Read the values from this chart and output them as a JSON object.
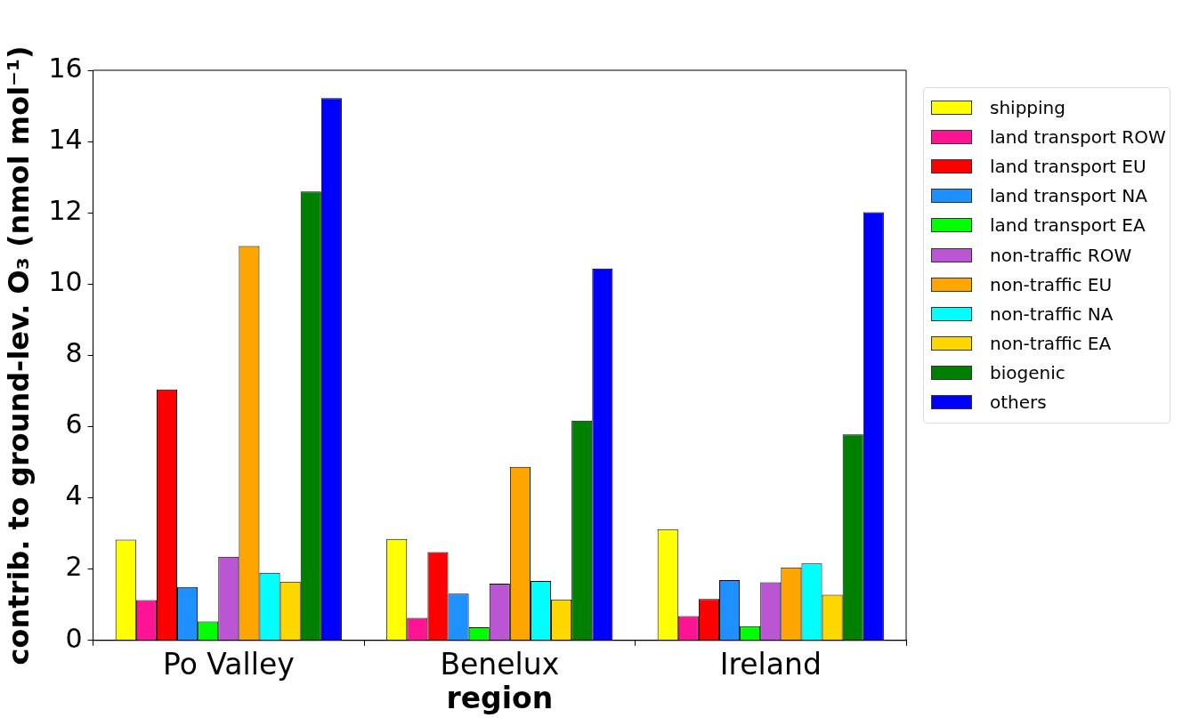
{
  "chart_data": {
    "type": "bar",
    "xlabel": "region",
    "ylabel": "contrib. to ground-lev. O₃ (nmol mol⁻¹)",
    "categories": [
      "Po Valley",
      "Benelux",
      "Ireland"
    ],
    "ylim": [
      0,
      16
    ],
    "yticks": [
      0,
      2,
      4,
      6,
      8,
      10,
      12,
      14,
      16
    ],
    "grid": false,
    "legend": "right",
    "series": [
      {
        "name": "shipping",
        "color": "#ffff00",
        "values": [
          2.83,
          2.85,
          3.12
        ]
      },
      {
        "name": "land transport ROW",
        "color": "#ff1493",
        "values": [
          1.13,
          0.63,
          0.68
        ]
      },
      {
        "name": "land transport EU",
        "color": "#ff0000",
        "values": [
          7.04,
          2.48,
          1.16
        ]
      },
      {
        "name": "land transport NA",
        "color": "#1e90ff",
        "values": [
          1.5,
          1.31,
          1.69
        ]
      },
      {
        "name": "land transport EA",
        "color": "#00ff00",
        "values": [
          0.53,
          0.37,
          0.4
        ]
      },
      {
        "name": "non-traffic ROW",
        "color": "#ba55d3",
        "values": [
          2.35,
          1.59,
          1.63
        ]
      },
      {
        "name": "non-traffic EU",
        "color": "#ffa500",
        "values": [
          11.07,
          4.87,
          2.05
        ]
      },
      {
        "name": "non-traffic NA",
        "color": "#00ffff",
        "values": [
          1.9,
          1.67,
          2.16
        ]
      },
      {
        "name": "non-traffic EA",
        "color": "#ffd700",
        "values": [
          1.65,
          1.15,
          1.28
        ]
      },
      {
        "name": "biogenic",
        "color": "#008000",
        "values": [
          12.6,
          6.17,
          5.78
        ]
      },
      {
        "name": "others",
        "color": "#0000ff",
        "values": [
          15.22,
          10.44,
          12.02
        ]
      }
    ]
  }
}
